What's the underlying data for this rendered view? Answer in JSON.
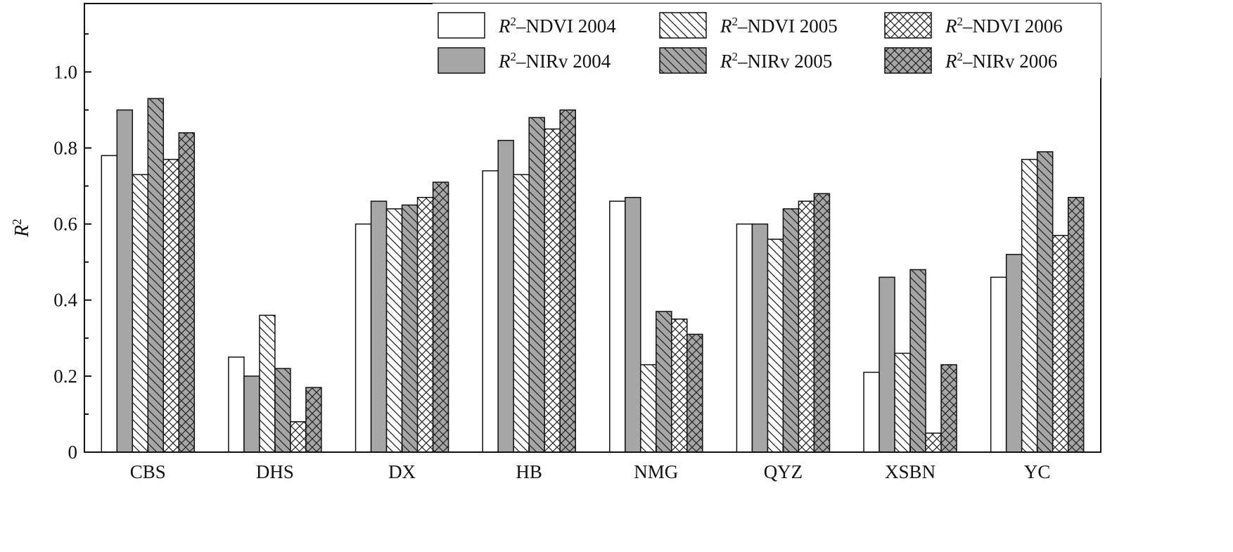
{
  "chart_data": {
    "type": "bar",
    "title": "",
    "xlabel": "",
    "ylabel": "R²",
    "ylim": [
      0,
      1.18
    ],
    "yticks": [
      "0",
      "0.2",
      "0.4",
      "0.6",
      "0.8",
      "1.0"
    ],
    "ytick_values": [
      0,
      0.2,
      0.4,
      0.6,
      0.8,
      1.0
    ],
    "legend_position": "top-right",
    "grid": false,
    "categories": [
      "CBS",
      "DHS",
      "DX",
      "HB",
      "NMG",
      "QYZ",
      "XSBN",
      "YC"
    ],
    "series": [
      {
        "name": "R²–NDVI 2004",
        "fill": "#ffffff",
        "pattern": "none",
        "values": [
          0.78,
          0.25,
          0.6,
          0.74,
          0.66,
          0.6,
          0.21,
          0.46
        ]
      },
      {
        "name": "R²–NIRv 2004",
        "fill": "#a6a6a6",
        "pattern": "none",
        "values": [
          0.9,
          0.2,
          0.66,
          0.82,
          0.67,
          0.6,
          0.46,
          0.52
        ]
      },
      {
        "name": "R²–NDVI 2005",
        "fill": "#ffffff",
        "pattern": "hatch",
        "values": [
          0.73,
          0.36,
          0.64,
          0.73,
          0.23,
          0.56,
          0.26,
          0.77
        ]
      },
      {
        "name": "R²–NIRv 2005",
        "fill": "#a6a6a6",
        "pattern": "hatch",
        "values": [
          0.93,
          0.22,
          0.65,
          0.88,
          0.37,
          0.64,
          0.48,
          0.79
        ]
      },
      {
        "name": "R²–NDVI 2006",
        "fill": "#ffffff",
        "pattern": "cross",
        "values": [
          0.77,
          0.08,
          0.67,
          0.85,
          0.35,
          0.66,
          0.05,
          0.57
        ]
      },
      {
        "name": "R²–NIRv 2006",
        "fill": "#a6a6a6",
        "pattern": "cross",
        "values": [
          0.84,
          0.17,
          0.71,
          0.9,
          0.31,
          0.68,
          0.23,
          0.67
        ]
      }
    ]
  }
}
